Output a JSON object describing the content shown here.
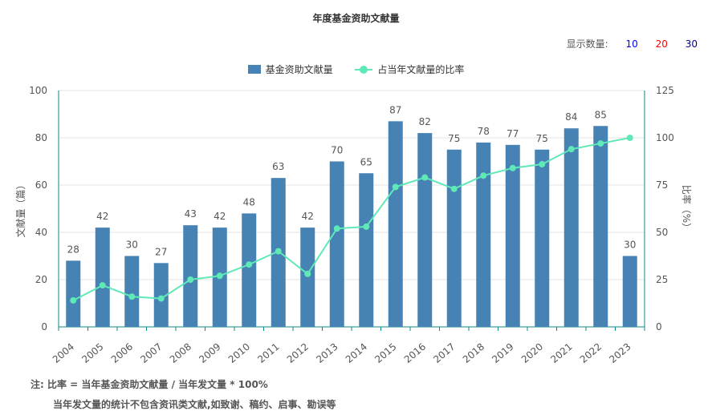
{
  "chart_data": {
    "type": "bar",
    "title": "年度基金资助文献量",
    "categories": [
      "2004",
      "2005",
      "2006",
      "2007",
      "2008",
      "2009",
      "2010",
      "2011",
      "2012",
      "2013",
      "2014",
      "2015",
      "2016",
      "2017",
      "2018",
      "2019",
      "2020",
      "2021",
      "2022",
      "2023"
    ],
    "series": [
      {
        "name": "基金资助文献量",
        "type": "bar",
        "axis": "left",
        "color": "#4682b4",
        "values": [
          28,
          42,
          30,
          27,
          43,
          42,
          48,
          63,
          42,
          70,
          65,
          87,
          82,
          75,
          78,
          77,
          75,
          84,
          85,
          30
        ]
      },
      {
        "name": "占当年文献量的比率",
        "type": "line",
        "axis": "right",
        "color": "#5fe9b6",
        "values": [
          14,
          22,
          16,
          15,
          25,
          27,
          33,
          40,
          28,
          52,
          53,
          74,
          79,
          73,
          80,
          84,
          86,
          94,
          97,
          100
        ]
      }
    ],
    "ylabel": "文献量（篇）",
    "ylim": [
      0,
      100
    ],
    "yticks": [
      0,
      20,
      40,
      60,
      80,
      100
    ],
    "y2label": "比率（%）",
    "y2lim": [
      0,
      125
    ],
    "y2ticks": [
      0,
      25,
      50,
      75,
      100,
      125
    ],
    "legend_position": "top-center",
    "grid": true
  },
  "count_control": {
    "label": "显示数量:",
    "options": [
      {
        "text": "10",
        "color": "#0000ff"
      },
      {
        "text": "20",
        "color": "#ff0000"
      },
      {
        "text": "30",
        "color": "#00008b"
      }
    ]
  },
  "notes": {
    "line1": "注:  比率 = 当年基金资助文献量 / 当年发文量 * 100%",
    "line2": "当年发文量的统计不包含资讯类文献,如致谢、稿约、启事、勘误等"
  }
}
